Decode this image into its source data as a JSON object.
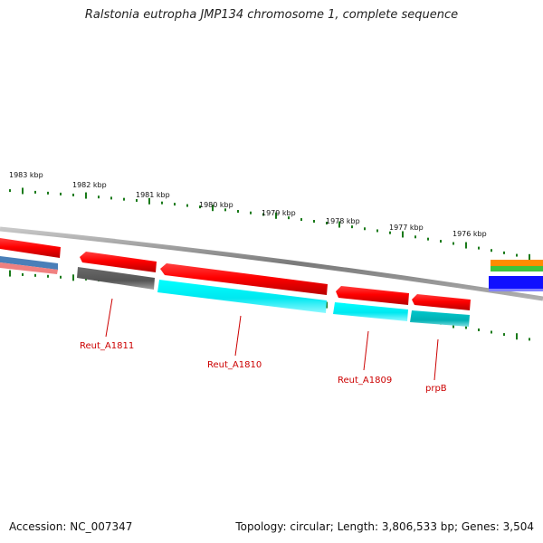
{
  "title": "Ralstonia eutropha JMP134 chromosome 1, complete sequence",
  "footer": {
    "accession": "Accession: NC_007347",
    "summary": "Topology: circular; Length: 3,806,533 bp; Genes: 3,504"
  },
  "scale": {
    "labels": [
      "1983 kbp",
      "1982 kbp",
      "1981 kbp",
      "1980 kbp",
      "1979 kbp",
      "1978 kbp",
      "1977 kbp",
      "1976 kbp"
    ]
  },
  "genes": {
    "labels": [
      "Reut_A1811",
      "Reut_A1810",
      "Reut_A1809",
      "prpB"
    ]
  },
  "colors": {
    "backbone": "#8c8c8c",
    "tick": "#1a7a1a",
    "forward_cds": "#ff0000",
    "reverse_cds": "#00e5ee",
    "reverse_grey": "#5a5a5a",
    "label": "#cc0000"
  }
}
